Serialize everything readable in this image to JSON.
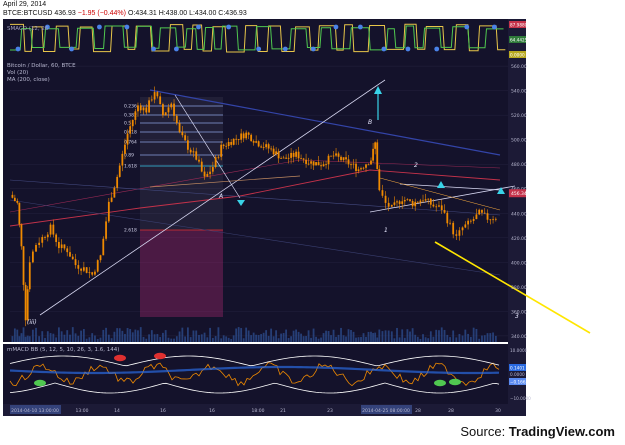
{
  "header": {
    "date": "April 29, 2014",
    "symbol": "BTCE:BTCUSD",
    "last": "436.93",
    "change": "−1.95 (−0.44%)",
    "open": "O:434.31",
    "high": "H:438.00",
    "low": "L:434.00",
    "close": "C:436.93"
  },
  "footer": {
    "source_prefix": "Source: ",
    "source_name": "TradingView.com"
  },
  "colors": {
    "background": "#14122b",
    "candles": "#f08a00",
    "ma_red": "#c4324a",
    "ma_blue": "#3344a8",
    "trendline": "#d8d8f2",
    "target_line": "#ffe600",
    "cyan_arrow": "#39d3e8",
    "volume": "#2a4a8a"
  },
  "chart_data": [
    {
      "id": "smacd-top",
      "type": "line",
      "label": "SMACD (12, 26",
      "values_shown": [
        "87.9880",
        "64.4425",
        "0.0000"
      ],
      "series": [
        {
          "color": "#e8c64a",
          "pattern": "square-wave oscillation"
        },
        {
          "color": "#50c850",
          "pattern": "square-wave oscillation"
        },
        {
          "color": "#4a82e8",
          "pattern": "dots at extremes"
        }
      ]
    },
    {
      "id": "price",
      "type": "candlestick",
      "title": "Bitcoin / Dollar, 60, BTCE",
      "legend": [
        "Vol (20)",
        "MA (200, close)"
      ],
      "yticks": [
        "560.00",
        "540.00",
        "520.00",
        "500.00",
        "480.00",
        "460.00",
        "440.00",
        "420.00",
        "400.00",
        "380.00",
        "360.00",
        "340.00"
      ],
      "price_marker": "456.34",
      "ylim": [
        335,
        565
      ],
      "close_path": [
        [
          "2014-04-10 13:00",
          455
        ],
        [
          "2014-04-10 20:00",
          448
        ],
        [
          "2014-04-11 00:00",
          412
        ],
        [
          "2014-04-11 04:00",
          355
        ],
        [
          "2014-04-11 08:00",
          402
        ],
        [
          "2014-04-11 14:00",
          415
        ],
        [
          "2014-04-11 20:00",
          420
        ],
        [
          "2014-04-12 04:00",
          428
        ],
        [
          "2014-04-12 12:00",
          413
        ],
        [
          "2014-04-12 20:00",
          410
        ],
        [
          "2014-04-13 04:00",
          398
        ],
        [
          "2014-04-13 12:00",
          395
        ],
        [
          "2014-04-13 20:00",
          390
        ],
        [
          "2014-04-14 04:00",
          405
        ],
        [
          "2014-04-14 12:00",
          448
        ],
        [
          "2014-04-14 20:00",
          470
        ],
        [
          "2014-04-15 06:00",
          505
        ],
        [
          "2014-04-15 16:00",
          528
        ],
        [
          "2014-04-16 00:00",
          524
        ],
        [
          "2014-04-16 08:00",
          540
        ],
        [
          "2014-04-16 16:00",
          520
        ],
        [
          "2014-04-17 00:00",
          530
        ],
        [
          "2014-04-17 08:00",
          505
        ],
        [
          "2014-04-17 16:00",
          494
        ],
        [
          "2014-04-18 00:00",
          485
        ],
        [
          "2014-04-18 08:00",
          468
        ],
        [
          "2014-04-18 16:00",
          478
        ],
        [
          "2014-04-19 00:00",
          494
        ],
        [
          "2014-04-19 12:00",
          500
        ],
        [
          "2014-04-20 00:00",
          505
        ],
        [
          "2014-04-20 12:00",
          497
        ],
        [
          "2014-04-21 00:00",
          492
        ],
        [
          "2014-04-21 12:00",
          484
        ],
        [
          "2014-04-22 00:00",
          488
        ],
        [
          "2014-04-22 12:00",
          482
        ],
        [
          "2014-04-23 00:00",
          480
        ],
        [
          "2014-04-23 12:00",
          487
        ],
        [
          "2014-04-24 00:00",
          482
        ],
        [
          "2014-04-24 12:00",
          476
        ],
        [
          "2014-04-25 00:00",
          484
        ],
        [
          "2014-04-25 04:00",
          497
        ],
        [
          "2014-04-25 08:00",
          458
        ],
        [
          "2014-04-25 14:00",
          448
        ],
        [
          "2014-04-25 20:00",
          444
        ],
        [
          "2014-04-26 06:00",
          452
        ],
        [
          "2014-04-26 16:00",
          448
        ],
        [
          "2014-04-27 02:00",
          452
        ],
        [
          "2014-04-27 12:00",
          446
        ],
        [
          "2014-04-27 20:00",
          444
        ],
        [
          "2014-04-28 04:00",
          430
        ],
        [
          "2014-04-28 10:00",
          420
        ],
        [
          "2014-04-28 16:00",
          428
        ],
        [
          "2014-04-29 00:00",
          433
        ],
        [
          "2014-04-29 08:00",
          440
        ],
        [
          "2014-04-29 16:00",
          436
        ],
        [
          "2014-04-30 00:00",
          437
        ]
      ],
      "fib_levels": [
        "0.236",
        "0.382",
        "0.5",
        "0.618",
        "0.764",
        "0.89",
        "1.618",
        "2.618"
      ],
      "annotations": [
        "A",
        "B",
        "1",
        "2",
        "3",
        "(iii)"
      ],
      "xticks": [
        "2014-04-10 13:00:00",
        "13:00",
        "14",
        "16",
        "16",
        "18:00",
        "21",
        "23",
        "2014-04-25 08:00:00",
        "28",
        "28",
        "30"
      ]
    },
    {
      "id": "mmacd-bottom",
      "type": "line",
      "label": "mMACD BB (5, 12, 5, 10, 26, 3, 1.6, 144)",
      "values_shown": [
        "0.1401",
        "−0.1663"
      ],
      "yticks": [
        "10.0000",
        "0.0000",
        "−10.0000"
      ],
      "series": [
        {
          "color": "#f08a00",
          "pattern": "macd line"
        },
        {
          "color": "#ffffff",
          "pattern": "bollinger upper"
        },
        {
          "color": "#ffffff",
          "pattern": "bollinger lower"
        },
        {
          "color": "#2a6ae0",
          "pattern": "band"
        }
      ]
    }
  ]
}
